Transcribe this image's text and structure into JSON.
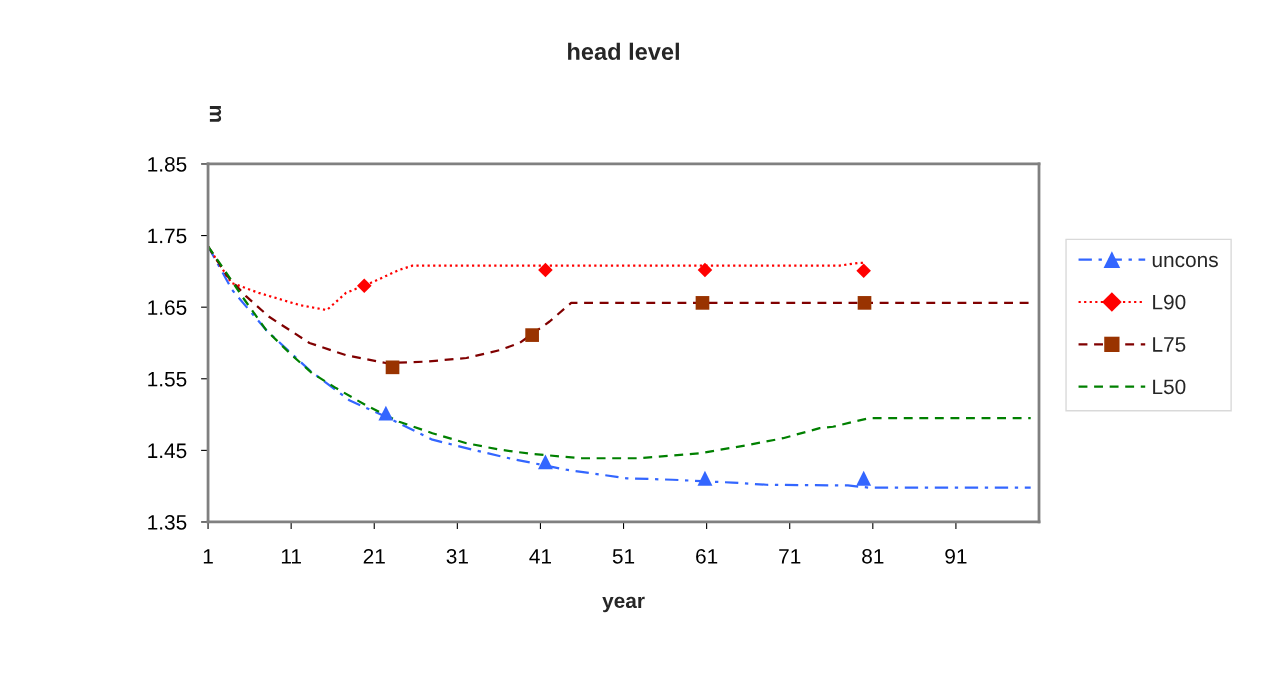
{
  "chart_data": {
    "type": "line",
    "title": "head level",
    "xlabel": "year",
    "ylabel": "m",
    "xlim": [
      1,
      101
    ],
    "xticks": [
      1,
      11,
      21,
      31,
      41,
      51,
      61,
      71,
      81,
      91
    ],
    "ylim": [
      1.35,
      1.85
    ],
    "yticks": [
      1.35,
      1.45,
      1.55,
      1.65,
      1.75,
      1.85
    ],
    "grid": false,
    "legend": "right",
    "series": [
      {
        "name": "uncons",
        "color": "#3366ff",
        "line_style": "dashdot",
        "marker": "none",
        "x": [
          1,
          3.9,
          8,
          13.2,
          18,
          22.4,
          28,
          32.8,
          37.6,
          44.1,
          51.4,
          56.9,
          64.1,
          68.2,
          78,
          80.5,
          100
        ],
        "values": [
          1.735,
          1.674,
          1.618,
          1.562,
          1.52,
          1.497,
          1.465,
          1.451,
          1.438,
          1.423,
          1.411,
          1.409,
          1.405,
          1.402,
          1.401,
          1.398,
          1.398
        ]
      },
      {
        "type": "scatter",
        "color": "#3366ff",
        "marker": "triangle",
        "x": [
          22.4,
          41.6,
          60.8,
          79.9
        ],
        "values": [
          1.502,
          1.434,
          1.411,
          1.411
        ]
      },
      {
        "name": "L90",
        "color": "#ff0000",
        "line_style": "dotted",
        "marker": "none",
        "x": [
          1,
          3.8,
          7.1,
          12,
          15.3,
          17.6,
          20.8,
          24,
          25.6,
          77,
          79.4,
          80
        ],
        "values": [
          1.735,
          1.684,
          1.67,
          1.653,
          1.646,
          1.67,
          1.685,
          1.702,
          1.708,
          1.708,
          1.712,
          1.712
        ]
      },
      {
        "type": "scatter",
        "color": "#ff0000",
        "marker": "diamond",
        "x": [
          19.8,
          41.6,
          60.8,
          79.9
        ],
        "values": [
          1.68,
          1.702,
          1.702,
          1.701
        ]
      },
      {
        "name": "L75",
        "color": "#800000",
        "line_style": "dashed",
        "marker": "none",
        "x": [
          1,
          3.2,
          5.6,
          8.3,
          13.2,
          17.6,
          22.4,
          27.3,
          32.1,
          36.1,
          38.5,
          42.1,
          44.7,
          100
        ],
        "values": [
          1.735,
          1.695,
          1.665,
          1.637,
          1.6,
          1.583,
          1.572,
          1.574,
          1.579,
          1.59,
          1.6,
          1.63,
          1.656,
          1.656
        ]
      },
      {
        "type": "scatter",
        "color": "#993300",
        "marker": "square",
        "x": [
          23.2,
          40,
          60.5,
          80
        ],
        "values": [
          1.566,
          1.611,
          1.656,
          1.656
        ]
      },
      {
        "name": "L50",
        "color": "#008000",
        "line_style": "dashed",
        "marker": "none",
        "x": [
          1,
          3.2,
          5.1,
          8,
          10.8,
          13.5,
          16.4,
          20,
          24,
          28,
          32.1,
          36.1,
          40,
          46,
          52.9,
          60.2,
          66.2,
          70.2,
          74.6,
          76.2,
          79.4,
          80.6,
          100
        ],
        "values": [
          1.735,
          1.698,
          1.665,
          1.618,
          1.586,
          1.558,
          1.537,
          1.513,
          1.49,
          1.474,
          1.46,
          1.451,
          1.445,
          1.439,
          1.439,
          1.446,
          1.458,
          1.467,
          1.481,
          1.483,
          1.492,
          1.495,
          1.495
        ]
      }
    ]
  }
}
